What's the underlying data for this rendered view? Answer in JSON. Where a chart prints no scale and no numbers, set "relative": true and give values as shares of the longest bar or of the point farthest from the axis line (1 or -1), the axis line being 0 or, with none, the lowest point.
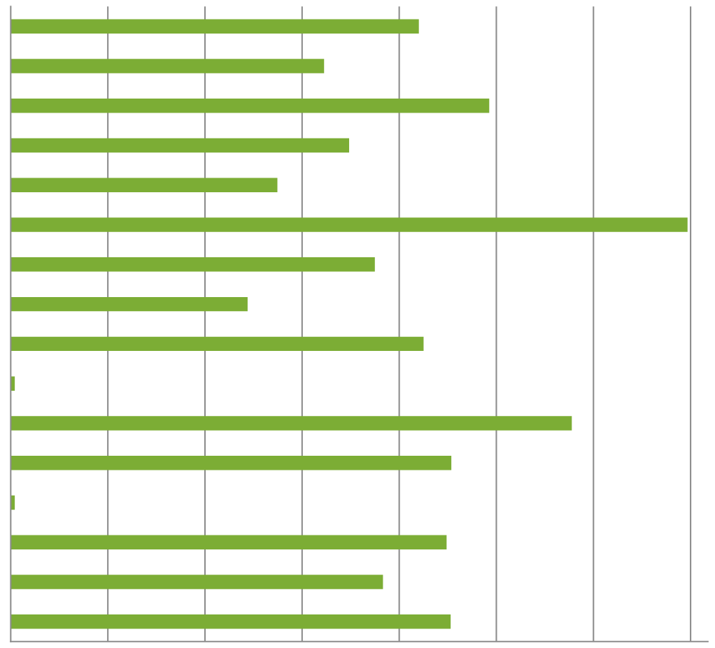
{
  "chart_data": {
    "type": "bar",
    "orientation": "horizontal",
    "relative": true,
    "grid": "x",
    "legend": false,
    "categories": [
      null,
      null,
      null,
      null,
      null,
      null,
      null,
      null,
      null,
      null,
      null,
      null,
      null,
      null,
      null,
      null
    ],
    "values": [
      0.603,
      0.463,
      0.707,
      0.5,
      0.394,
      1,
      0.538,
      0.35,
      0.61,
      0.006,
      0.829,
      0.651,
      0.006,
      0.644,
      0.55,
      0.65
    ],
    "color": "#7cad35"
  }
}
